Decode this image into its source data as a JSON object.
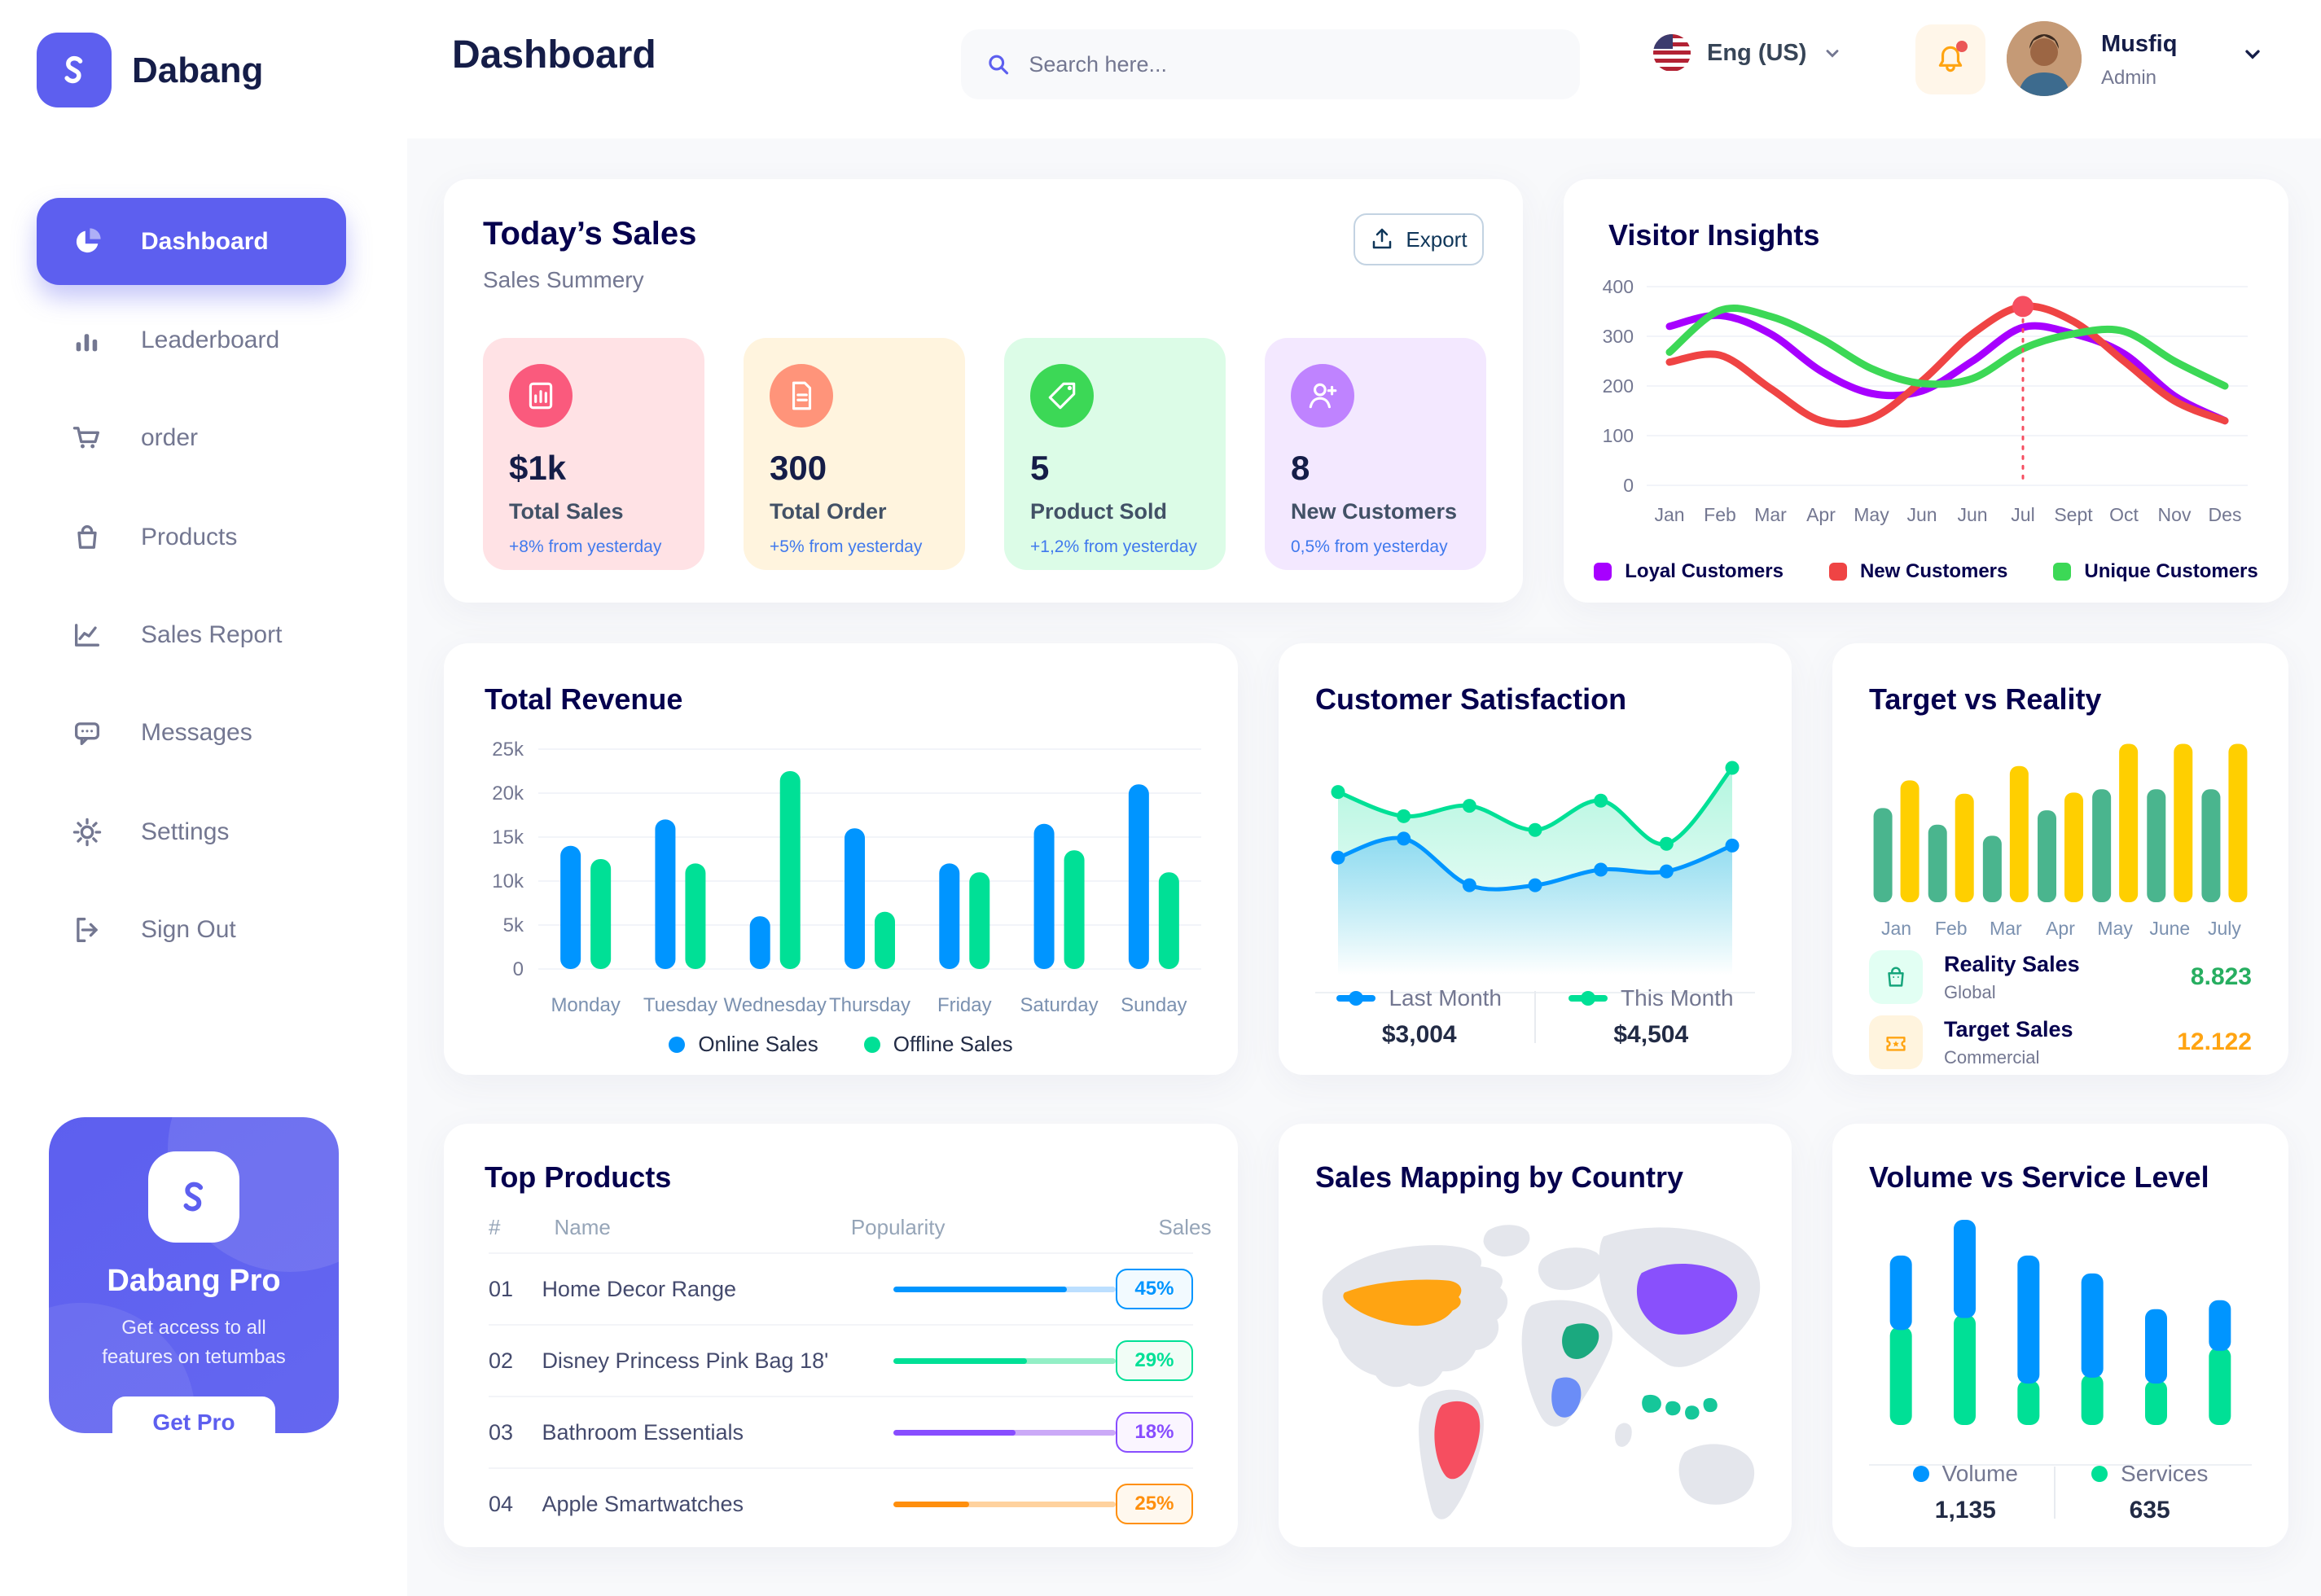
{
  "brand": {
    "name": "Dabang"
  },
  "header": {
    "title": "Dashboard",
    "search_placeholder": "Search here...",
    "language": "Eng (US)",
    "user": {
      "name": "Musfiq",
      "role": "Admin"
    }
  },
  "sidebar": {
    "items": [
      {
        "label": "Dashboard",
        "active": true
      },
      {
        "label": "Leaderboard"
      },
      {
        "label": "order"
      },
      {
        "label": "Products"
      },
      {
        "label": "Sales Report"
      },
      {
        "label": "Messages"
      },
      {
        "label": "Settings"
      },
      {
        "label": "Sign Out"
      }
    ]
  },
  "pro_card": {
    "title": "Dabang Pro",
    "subtitle": "Get access to all features on tetumbas",
    "button_label": "Get Pro"
  },
  "today_sales": {
    "title": "Today’s Sales",
    "subtitle": "Sales Summery",
    "export_label": "Export",
    "cards": [
      {
        "value": "$1k",
        "label": "Total Sales",
        "delta": "+8% from yesterday",
        "bg": "#FFE2E5",
        "icon_bg": "#FA5A7D",
        "icon": "bar-chart-icon"
      },
      {
        "value": "300",
        "label": "Total Order",
        "delta": "+5% from yesterday",
        "bg": "#FFF4DE",
        "icon_bg": "#FF947A",
        "icon": "order-file-icon"
      },
      {
        "value": "5",
        "label": "Product Sold",
        "delta": "+1,2% from yesterday",
        "bg": "#DCFCE7",
        "icon_bg": "#3CD856",
        "icon": "tag-icon"
      },
      {
        "value": "8",
        "label": "New Customers",
        "delta": "0,5% from yesterday",
        "bg": "#F3E8FF",
        "icon_bg": "#BF83FF",
        "icon": "user-plus-icon"
      }
    ]
  },
  "top_products": {
    "title": "Top Products",
    "headers": [
      "#",
      "Name",
      "Popularity",
      "Sales"
    ],
    "rows": [
      {
        "num": "01",
        "name": "Home Decor Range",
        "popularity": 78,
        "sales": "45%",
        "color": "#0095FF",
        "track": "#BCDFFF",
        "badge_bg": "#F2FAFF"
      },
      {
        "num": "02",
        "name": "Disney Princess Pink Bag 18'",
        "popularity": 60,
        "sales": "29%",
        "color": "#00E096",
        "track": "#93EFC6",
        "badge_bg": "#F1FDF6"
      },
      {
        "num": "03",
        "name": "Bathroom Essentials",
        "popularity": 55,
        "sales": "18%",
        "color": "#884DFF",
        "track": "#CBA9F7",
        "badge_bg": "#FAF5FF"
      },
      {
        "num": "04",
        "name": "Apple Smartwatches",
        "popularity": 34,
        "sales": "25%",
        "color": "#FF8F0D",
        "track": "#FFD29E",
        "badge_bg": "#FFF8EE"
      }
    ]
  },
  "sales_map": {
    "title": "Sales Mapping by Country",
    "countries": [
      {
        "id": "usa",
        "name": "United States",
        "color": "#FFA412"
      },
      {
        "id": "brazil",
        "name": "Brazil",
        "color": "#F64E60"
      },
      {
        "id": "dr_congo",
        "name": "DR Congo",
        "color": "#6B8DF7"
      },
      {
        "id": "saudi_arabia",
        "name": "Saudi Arabia",
        "color": "#1BA97F"
      },
      {
        "id": "china",
        "name": "China",
        "color": "#8950FC"
      },
      {
        "id": "indonesia",
        "name": "Indonesia",
        "color": "#16C79A"
      }
    ]
  },
  "chart_data": [
    {
      "id": "visitor_insights",
      "type": "line",
      "title": "Visitor Insights",
      "x": [
        "Jan",
        "Feb",
        "Mar",
        "Apr",
        "May",
        "Jun",
        "Jun",
        "Jul",
        "Sept",
        "Oct",
        "Nov",
        "Des"
      ],
      "ylim": [
        0,
        400
      ],
      "ytick_values": [
        0,
        100,
        200,
        300,
        400
      ],
      "grid": true,
      "legend_position": "bottom",
      "series": [
        {
          "name": "Loyal Customers",
          "color": "#A700FF",
          "values": [
            320,
            342,
            305,
            230,
            185,
            190,
            250,
            318,
            305,
            265,
            180,
            130
          ]
        },
        {
          "name": "New Customers",
          "color": "#EF4444",
          "values": [
            248,
            262,
            195,
            130,
            135,
            210,
            305,
            360,
            330,
            250,
            170,
            130
          ]
        },
        {
          "name": "Unique Customers",
          "color": "#3CD856",
          "values": [
            268,
            352,
            340,
            295,
            235,
            205,
            215,
            275,
            305,
            310,
            250,
            200
          ]
        }
      ],
      "annotation": {
        "x_index": 7,
        "series_index": 1,
        "marker_color": "#F64E60"
      }
    },
    {
      "id": "total_revenue",
      "type": "bar",
      "title": "Total Revenue",
      "categories": [
        "Monday",
        "Tuesday",
        "Wednesday",
        "Thursday",
        "Friday",
        "Saturday",
        "Sunday"
      ],
      "ylim": [
        0,
        25000
      ],
      "yticks": [
        {
          "v": 0,
          "label": "0"
        },
        {
          "v": 5000,
          "label": "5k"
        },
        {
          "v": 10000,
          "label": "10k"
        },
        {
          "v": 15000,
          "label": "15k"
        },
        {
          "v": 20000,
          "label": "20k"
        },
        {
          "v": 25000,
          "label": "25k"
        }
      ],
      "grid": true,
      "legend_position": "bottom",
      "series": [
        {
          "name": "Online Sales",
          "color": "#0095FF",
          "values": [
            14000,
            17000,
            6000,
            16000,
            12000,
            16500,
            21000
          ]
        },
        {
          "name": "Offline Sales",
          "color": "#00E096",
          "values": [
            12500,
            12000,
            22500,
            6500,
            11000,
            13500,
            11000
          ]
        }
      ]
    },
    {
      "id": "customer_satisfaction",
      "type": "area",
      "title": "Customer Satisfaction",
      "ylim": [
        0,
        100
      ],
      "grid": false,
      "legend_position": "bottom",
      "series": [
        {
          "name": "Last Month",
          "color": "#0095FF",
          "total_label": "$3,004",
          "values": [
            40,
            51,
            24,
            24,
            33,
            32,
            47
          ]
        },
        {
          "name": "This Month",
          "color": "#00E096",
          "total_label": "$4,504",
          "values": [
            78,
            64,
            70,
            56,
            73,
            48,
            92
          ]
        }
      ]
    },
    {
      "id": "target_vs_reality",
      "type": "bar",
      "title": "Target vs Reality",
      "categories": [
        "Jan",
        "Feb",
        "Mar",
        "Apr",
        "May",
        "June",
        "July"
      ],
      "ylim": [
        0,
        15
      ],
      "grid": false,
      "legend_position": "bottom",
      "series": [
        {
          "name": "Reality Sales",
          "subtitle": "Global",
          "color": "#4AB58E",
          "icon_bg": "#E2FFF3",
          "value_label": "8.823",
          "value_color": "#27AE60",
          "values": [
            8.5,
            7,
            6,
            8.3,
            10.2,
            10.2,
            10.2
          ]
        },
        {
          "name": "Target Sales",
          "subtitle": "Commercial",
          "color": "#FFCF00",
          "icon_bg": "#FFF4DE",
          "value_label": "12.122",
          "value_color": "#FFA412",
          "values": [
            11,
            9.8,
            12.3,
            9.9,
            14.3,
            14.3,
            14.3
          ]
        }
      ]
    },
    {
      "id": "volume_vs_service",
      "type": "stacked-bar",
      "title": "Volume vs Service Level",
      "grid": false,
      "legend_position": "bottom",
      "series": [
        {
          "name": "Volume",
          "color": "#0095FF",
          "total_label": "1,135",
          "values": [
            25,
            33,
            43,
            35,
            25,
            17
          ]
        },
        {
          "name": "Services",
          "color": "#00E096",
          "total_label": "635",
          "values": [
            33,
            37,
            15,
            17,
            15,
            26
          ]
        }
      ]
    }
  ]
}
